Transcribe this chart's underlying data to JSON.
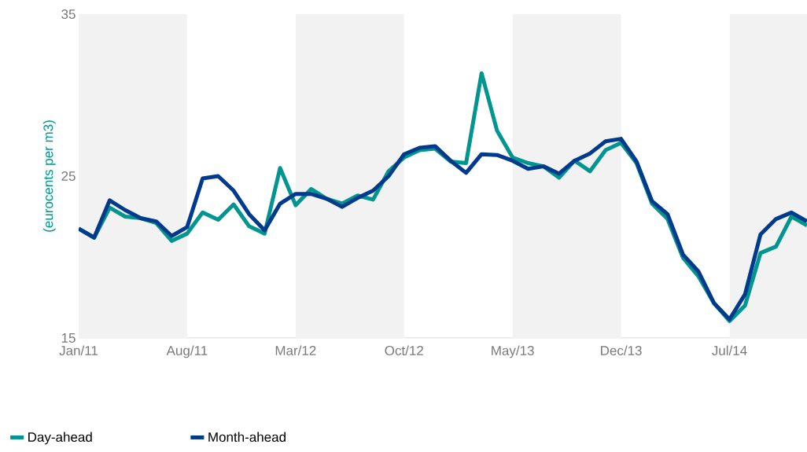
{
  "chart_data": {
    "type": "line",
    "ylabel": "(eurocents per m3)",
    "x": [
      "2011-01",
      "2011-02",
      "2011-03",
      "2011-04",
      "2011-05",
      "2011-06",
      "2011-07",
      "2011-08",
      "2011-09",
      "2011-10",
      "2011-11",
      "2011-12",
      "2012-01",
      "2012-02",
      "2012-03",
      "2012-04",
      "2012-05",
      "2012-06",
      "2012-07",
      "2012-08",
      "2012-09",
      "2012-10",
      "2012-11",
      "2012-12",
      "2013-01",
      "2013-02",
      "2013-03",
      "2013-04",
      "2013-05",
      "2013-06",
      "2013-07",
      "2013-08",
      "2013-09",
      "2013-10",
      "2013-11",
      "2013-12",
      "2014-01",
      "2014-02",
      "2014-03",
      "2014-04",
      "2014-05",
      "2014-06",
      "2014-07",
      "2014-08",
      "2014-09",
      "2014-10",
      "2014-11",
      "2014-12"
    ],
    "series": [
      {
        "name": "Day-ahead",
        "color": "#00968f",
        "values": [
          21.75,
          21.2,
          23.05,
          22.5,
          22.4,
          22.1,
          21.0,
          21.45,
          22.75,
          22.3,
          23.25,
          21.9,
          21.45,
          25.5,
          23.2,
          24.2,
          23.6,
          23.3,
          23.8,
          23.55,
          25.3,
          26.15,
          26.6,
          26.7,
          25.9,
          25.8,
          31.35,
          27.8,
          26.15,
          25.8,
          25.6,
          24.9,
          25.95,
          25.3,
          26.6,
          27.05,
          25.8,
          23.3,
          22.35,
          19.95,
          18.8,
          17.15,
          16.05,
          17.0,
          20.25,
          20.65,
          22.5,
          21.95
        ]
      },
      {
        "name": "Month-ahead",
        "color": "#003a8c",
        "values": [
          21.75,
          21.2,
          23.5,
          22.9,
          22.4,
          22.2,
          21.3,
          21.85,
          24.85,
          25.0,
          24.1,
          22.65,
          21.65,
          23.3,
          23.9,
          23.9,
          23.6,
          23.1,
          23.65,
          24.1,
          25.0,
          26.35,
          26.75,
          26.85,
          25.95,
          25.2,
          26.35,
          26.3,
          25.95,
          25.45,
          25.6,
          25.15,
          25.95,
          26.4,
          27.15,
          27.3,
          25.9,
          23.45,
          22.65,
          20.15,
          19.1,
          17.15,
          16.15,
          17.7,
          21.4,
          22.35,
          22.75,
          22.2
        ]
      }
    ],
    "xlim": [
      "2011-01",
      "2014-12"
    ],
    "xticks": [
      {
        "value": "2011-01",
        "label": "Jan/11"
      },
      {
        "value": "2011-08",
        "label": "Aug/11"
      },
      {
        "value": "2012-03",
        "label": "Mar/12"
      },
      {
        "value": "2012-10",
        "label": "Oct/12"
      },
      {
        "value": "2013-05",
        "label": "May/13"
      },
      {
        "value": "2013-12",
        "label": "Dec/13"
      },
      {
        "value": "2014-07",
        "label": "Jul/14"
      }
    ],
    "ylim": [
      15,
      35
    ],
    "yticks": [
      15,
      25,
      35
    ],
    "bands": [
      {
        "axis": "x",
        "from": "2011-01",
        "to": "2011-08",
        "color": "#f2f2f2"
      },
      {
        "axis": "x",
        "from": "2012-03",
        "to": "2012-10",
        "color": "#f2f2f2"
      },
      {
        "axis": "x",
        "from": "2013-05",
        "to": "2013-12",
        "color": "#f2f2f2"
      },
      {
        "axis": "x",
        "from": "2014-07",
        "to": "2014-12",
        "color": "#f2f2f2"
      }
    ],
    "grid": false,
    "legend": "bottom left",
    "marker": "none",
    "line_style": "solid"
  }
}
